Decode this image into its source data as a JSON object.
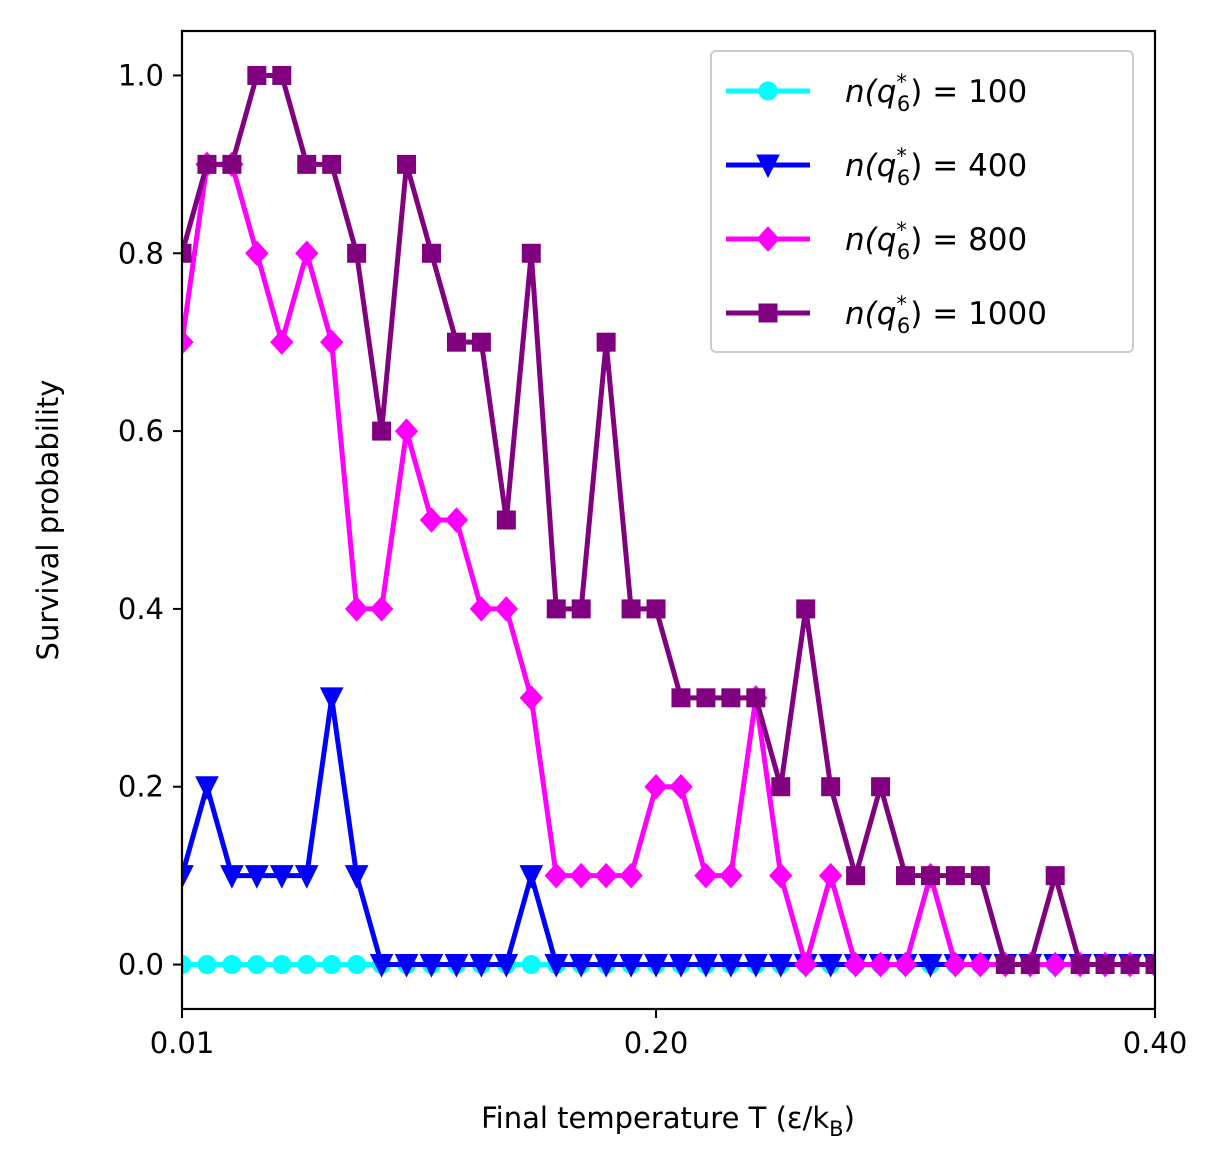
{
  "chart_data": {
    "type": "line",
    "title": "",
    "xlabel": "Final temperature T (ε/k",
    "xlabel_sub": "B",
    "xlabel_close": ")",
    "ylabel": "Survival probability",
    "xlim": [
      0.01,
      0.4
    ],
    "ylim": [
      -0.05,
      1.05
    ],
    "xticks": [
      0.01,
      0.2,
      0.4
    ],
    "xtick_labels": [
      "0.01",
      "0.20",
      "0.40"
    ],
    "yticks": [
      0.0,
      0.2,
      0.4,
      0.6,
      0.8,
      1.0
    ],
    "ytick_labels": [
      "0.0",
      "0.2",
      "0.4",
      "0.6",
      "0.8",
      "1.0"
    ],
    "grid": false,
    "legend_position": "top-right",
    "x": [
      0.01,
      0.02,
      0.03,
      0.04,
      0.05,
      0.06,
      0.07,
      0.08,
      0.09,
      0.1,
      0.11,
      0.12,
      0.13,
      0.14,
      0.15,
      0.16,
      0.17,
      0.18,
      0.19,
      0.2,
      0.21,
      0.22,
      0.23,
      0.24,
      0.25,
      0.26,
      0.27,
      0.28,
      0.29,
      0.3,
      0.31,
      0.32,
      0.33,
      0.34,
      0.35,
      0.36,
      0.37,
      0.38,
      0.39,
      0.4
    ],
    "series": [
      {
        "legend_prefix": "n(q",
        "legend_sup": "*",
        "legend_sub": "6",
        "legend_suffix": ") = 100",
        "color": "#00FFFF",
        "marker": "circle",
        "values": [
          0,
          0,
          0,
          0,
          0,
          0,
          0,
          0,
          0,
          0,
          0,
          0,
          0,
          0,
          0,
          0,
          0,
          0,
          0,
          0,
          0,
          0,
          0,
          0,
          0,
          0,
          0,
          0,
          0,
          0,
          0,
          0,
          0,
          0,
          0,
          0,
          0,
          0,
          0,
          0
        ]
      },
      {
        "legend_prefix": "n(q",
        "legend_sup": "*",
        "legend_sub": "6",
        "legend_suffix": ") = 400",
        "color": "#0000FF",
        "marker": "triangle-down",
        "values": [
          0.1,
          0.2,
          0.1,
          0.1,
          0.1,
          0.1,
          0.3,
          0.1,
          0,
          0,
          0,
          0,
          0,
          0,
          0.1,
          0,
          0,
          0,
          0,
          0,
          0,
          0,
          0,
          0,
          0,
          0,
          0,
          0,
          0,
          0,
          0,
          0,
          0,
          0,
          0,
          0,
          0,
          0,
          0,
          0
        ]
      },
      {
        "legend_prefix": "n(q",
        "legend_sup": "*",
        "legend_sub": "6",
        "legend_suffix": ") = 800",
        "color": "#FF00FF",
        "marker": "diamond",
        "values": [
          0.7,
          0.9,
          0.9,
          0.8,
          0.7,
          0.8,
          0.7,
          0.4,
          0.4,
          0.6,
          0.5,
          0.5,
          0.4,
          0.4,
          0.3,
          0.1,
          0.1,
          0.1,
          0.1,
          0.2,
          0.2,
          0.1,
          0.1,
          0.3,
          0.1,
          0,
          0.1,
          0,
          0,
          0,
          0.1,
          0,
          0,
          0,
          0,
          0,
          0,
          0,
          0,
          0
        ]
      },
      {
        "legend_prefix": "n(q",
        "legend_sup": "*",
        "legend_sub": "6",
        "legend_suffix": ") = 1000",
        "color": "#800080",
        "marker": "square",
        "values": [
          0.8,
          0.9,
          0.9,
          1.0,
          1.0,
          0.9,
          0.9,
          0.8,
          0.6,
          0.9,
          0.8,
          0.7,
          0.7,
          0.5,
          0.8,
          0.4,
          0.4,
          0.7,
          0.4,
          0.4,
          0.3,
          0.3,
          0.3,
          0.3,
          0.2,
          0.4,
          0.2,
          0.1,
          0.2,
          0.1,
          0.1,
          0.1,
          0.1,
          0,
          0,
          0.1,
          0,
          0,
          0,
          0
        ]
      }
    ]
  }
}
